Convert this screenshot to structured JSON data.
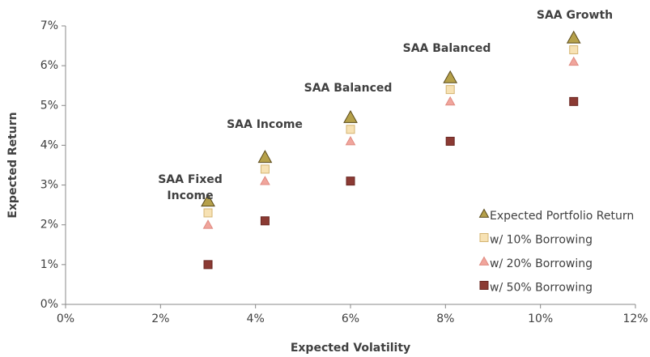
{
  "chart_data": {
    "type": "scatter",
    "xlabel": "Expected Volatility",
    "ylabel": "Expected Return",
    "xlim": [
      0,
      12
    ],
    "ylim": [
      0,
      7
    ],
    "xticks": [
      {
        "value": 0,
        "label": "0%"
      },
      {
        "value": 2,
        "label": "2%"
      },
      {
        "value": 4,
        "label": "4%"
      },
      {
        "value": 6,
        "label": "6%"
      },
      {
        "value": 8,
        "label": "8%"
      },
      {
        "value": 10,
        "label": "10%"
      },
      {
        "value": 12,
        "label": "12%"
      }
    ],
    "yticks": [
      {
        "value": 0,
        "label": "0%"
      },
      {
        "value": 1,
        "label": "1%"
      },
      {
        "value": 2,
        "label": "2%"
      },
      {
        "value": 3,
        "label": "3%"
      },
      {
        "value": 4,
        "label": "4%"
      },
      {
        "value": 5,
        "label": "5%"
      },
      {
        "value": 6,
        "label": "6%"
      },
      {
        "value": 7,
        "label": "7%"
      }
    ],
    "grid": false,
    "legend": "lower right",
    "series": [
      {
        "name": "Expected Portfolio Return",
        "marker": "triangle",
        "color": "#b5a04a",
        "x": [
          3.0,
          4.2,
          6.0,
          8.1,
          10.7
        ],
        "values": [
          2.6,
          3.7,
          4.7,
          5.7,
          6.7
        ]
      },
      {
        "name": "w/ 10% Borrowing",
        "marker": "square",
        "color": "#f7e2b4",
        "x": [
          3.0,
          4.2,
          6.0,
          8.1,
          10.7
        ],
        "values": [
          2.3,
          3.4,
          4.4,
          5.4,
          6.4
        ]
      },
      {
        "name": "w/ 20% Borrowing",
        "marker": "triangle",
        "color": "#f0a59c",
        "x": [
          3.0,
          4.2,
          6.0,
          8.1,
          10.7
        ],
        "values": [
          2.0,
          3.1,
          4.1,
          5.1,
          6.1
        ]
      },
      {
        "name": "w/ 50% Borrowing",
        "marker": "square",
        "color": "#8b3a33",
        "x": [
          3.0,
          4.2,
          6.0,
          8.1,
          10.7
        ],
        "values": [
          1.0,
          2.1,
          3.1,
          4.1,
          5.1
        ]
      }
    ],
    "annotations": [
      "SAA Fixed Income",
      "SAA Income",
      "SAA Balanced",
      "SAA Balanced",
      "SAA Growth"
    ]
  }
}
